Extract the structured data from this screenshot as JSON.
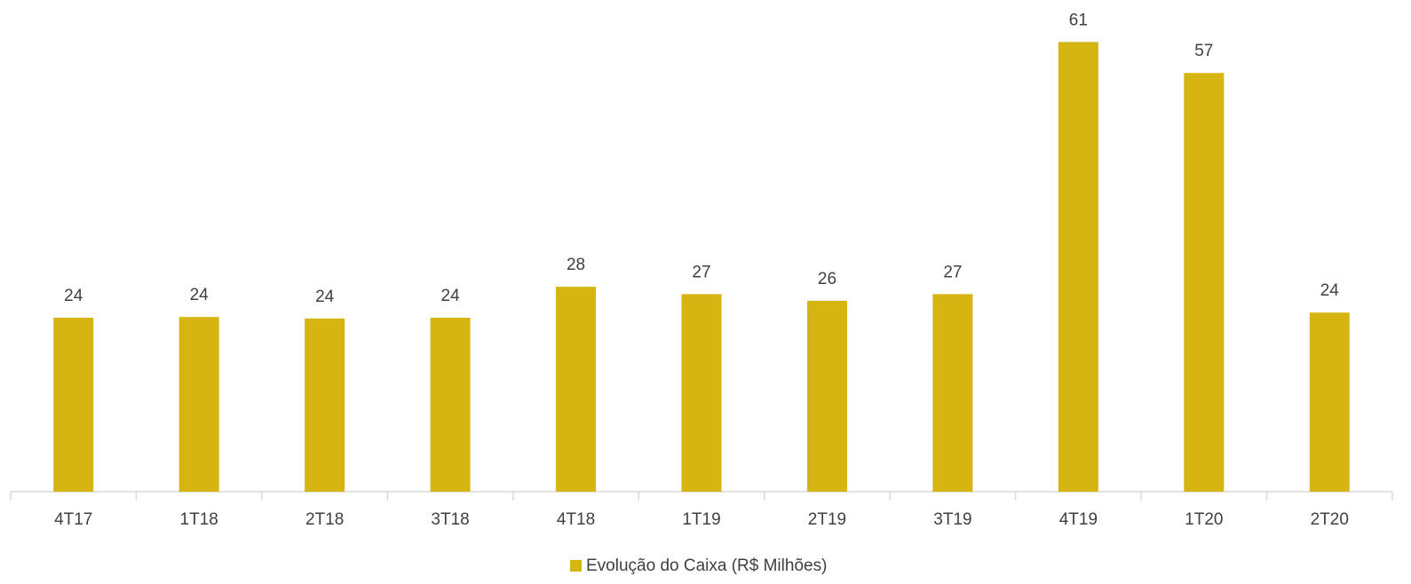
{
  "chart_data": {
    "type": "bar",
    "categories": [
      "4T17",
      "1T18",
      "2T18",
      "3T18",
      "4T18",
      "1T19",
      "2T19",
      "3T19",
      "4T19",
      "1T20",
      "2T20"
    ],
    "series": [
      {
        "name": "Evolução do Caixa (R$ Milhões)",
        "color": "#d6b412",
        "values": [
          23.6,
          23.7,
          23.5,
          23.6,
          27.8,
          26.8,
          25.9,
          26.8,
          61,
          56.8,
          24.3
        ],
        "value_labels": [
          "24",
          "24",
          "24",
          "24",
          "28",
          "27",
          "26",
          "27",
          "61",
          "57",
          "24"
        ]
      }
    ],
    "ylim": [
      0,
      66.7
    ],
    "legend": "bottom"
  }
}
